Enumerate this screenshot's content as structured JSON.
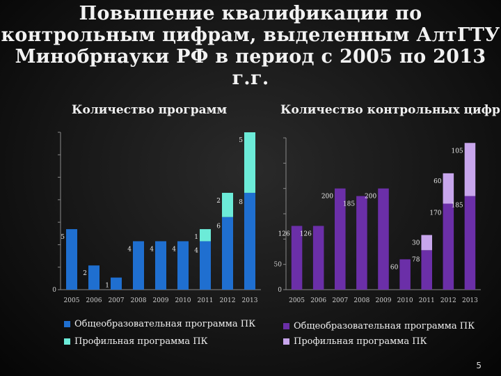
{
  "slide": {
    "title": "Повышение квалификации по контрольным цифрам, выделенным АлтГТУ Минобрнауки РФ в период с 2005 по 2013 г.г.",
    "page_number": "5"
  },
  "colors": {
    "left_general": "#1f6fd0",
    "left_profile": "#6cebd8",
    "right_general": "#6b2fa8",
    "right_profile": "#c8a6ec"
  },
  "chart_data": [
    {
      "type": "bar",
      "stacked": true,
      "title": "Количество программ",
      "categories": [
        "2005",
        "2006",
        "2007",
        "2008",
        "2009",
        "2010",
        "2011",
        "2012",
        "2013"
      ],
      "series": [
        {
          "name": "Общеобразовательная программа ПК",
          "values": [
            5,
            2,
            1,
            4,
            4,
            4,
            4,
            6,
            8
          ]
        },
        {
          "name": "Профильная программа ПК",
          "values": [
            0,
            0,
            0,
            0,
            0,
            0,
            1,
            2,
            5
          ]
        }
      ],
      "data_labels": [
        {
          "category": "2005",
          "series": 0,
          "text": "5"
        },
        {
          "category": "2006",
          "series": 0,
          "text": "2"
        },
        {
          "category": "2007",
          "series": 0,
          "text": "1"
        },
        {
          "category": "2008",
          "series": 0,
          "text": "4"
        },
        {
          "category": "2009",
          "series": 0,
          "text": "4"
        },
        {
          "category": "2010",
          "series": 0,
          "text": "4"
        },
        {
          "category": "2011",
          "series": 0,
          "text": "4"
        },
        {
          "category": "2011",
          "series": 1,
          "text": "1"
        },
        {
          "category": "2012",
          "series": 0,
          "text": "6"
        },
        {
          "category": "2012",
          "series": 1,
          "text": "2"
        },
        {
          "category": "2013",
          "series": 0,
          "text": "8"
        },
        {
          "category": "2013",
          "series": 1,
          "text": "5"
        }
      ],
      "ytick_labels": [
        "0"
      ],
      "ylim": [
        0,
        13
      ],
      "grid": false,
      "legend": "bottom"
    },
    {
      "type": "bar",
      "stacked": true,
      "title": "Количество контрольных цифр",
      "categories": [
        "2005",
        "2006",
        "2007",
        "2008",
        "2009",
        "2010",
        "2011",
        "2012",
        "2013"
      ],
      "series": [
        {
          "name": "Общеобразовательная программа ПК",
          "values": [
            126,
            126,
            200,
            185,
            200,
            60,
            78,
            170,
            185
          ]
        },
        {
          "name": "Профильная программа ПК",
          "values": [
            0,
            0,
            0,
            0,
            0,
            0,
            30,
            60,
            105
          ]
        }
      ],
      "data_labels": [
        {
          "category": "2005",
          "series": 0,
          "text": "126"
        },
        {
          "category": "2006",
          "series": 0,
          "text": "126"
        },
        {
          "category": "2007",
          "series": 0,
          "text": "200"
        },
        {
          "category": "2008",
          "series": 0,
          "text": "185"
        },
        {
          "category": "2009",
          "series": 0,
          "text": "200"
        },
        {
          "category": "2010",
          "series": 0,
          "text": "60"
        },
        {
          "category": "2011",
          "series": 0,
          "text": "78"
        },
        {
          "category": "2011",
          "series": 1,
          "text": "30"
        },
        {
          "category": "2012",
          "series": 0,
          "text": "170"
        },
        {
          "category": "2012",
          "series": 1,
          "text": "60"
        },
        {
          "category": "2013",
          "series": 0,
          "text": "185"
        },
        {
          "category": "2013",
          "series": 1,
          "text": "105"
        }
      ],
      "ytick_labels": [
        "0",
        "50"
      ],
      "ylim": [
        0,
        300
      ],
      "grid": false,
      "legend": "bottom"
    }
  ]
}
